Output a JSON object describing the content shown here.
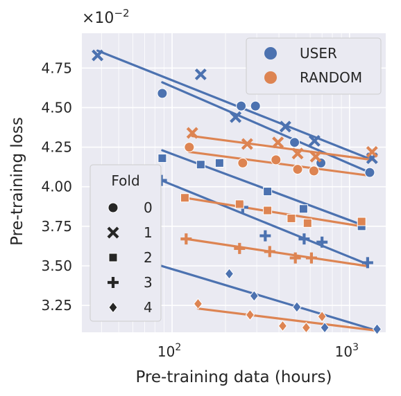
{
  "chart_data": {
    "type": "scatter",
    "title": "",
    "xlabel": "Pre-training data (hours)",
    "ylabel": "Pre-training loss",
    "x_scale": "log",
    "xlim": [
      31,
      1600
    ],
    "ylim": [
      3.08,
      4.97
    ],
    "y_multiplier_label": "×10",
    "y_multiplier_exp": "−2",
    "x_ticks": [
      {
        "value": 100,
        "base": "10",
        "exp": "2"
      },
      {
        "value": 1000,
        "base": "10",
        "exp": "3"
      }
    ],
    "y_ticks": [
      {
        "value": 3.25,
        "label": "3.25"
      },
      {
        "value": 3.5,
        "label": "3.50"
      },
      {
        "value": 3.75,
        "label": "3.75"
      },
      {
        "value": 4.0,
        "label": "4.00"
      },
      {
        "value": 4.25,
        "label": "4.25"
      },
      {
        "value": 4.5,
        "label": "4.50"
      },
      {
        "value": 4.75,
        "label": "4.75"
      }
    ],
    "grid": true,
    "colors": {
      "USER": "#4c72b0",
      "RANDOM": "#dd8452",
      "background": "#eaeaf2",
      "grid": "#ffffff",
      "neutral": "#262626"
    },
    "hue_legend": {
      "position": "top-right",
      "entries": [
        "USER",
        "RANDOM"
      ]
    },
    "style_legend": {
      "position": "lower-left",
      "title": "Fold",
      "entries": [
        {
          "label": "0",
          "marker": "circle"
        },
        {
          "label": "1",
          "marker": "x"
        },
        {
          "label": "2",
          "marker": "square"
        },
        {
          "label": "3",
          "marker": "plus"
        },
        {
          "label": "4",
          "marker": "diamond"
        }
      ]
    },
    "series": [
      {
        "name": "USER",
        "fold": "0",
        "marker": "circle",
        "points": [
          [
            88,
            4.59
          ],
          [
            245,
            4.51
          ],
          [
            295,
            4.51
          ],
          [
            490,
            4.28
          ],
          [
            690,
            4.15
          ],
          [
            1300,
            4.09
          ]
        ],
        "fit": [
          [
            88,
            4.66
          ],
          [
            1300,
            4.09
          ]
        ]
      },
      {
        "name": "USER",
        "fold": "1",
        "marker": "x",
        "points": [
          [
            38,
            4.83
          ],
          [
            145,
            4.71
          ],
          [
            228,
            4.44
          ],
          [
            435,
            4.38
          ],
          [
            635,
            4.29
          ],
          [
            1340,
            4.18
          ]
        ],
        "fit": [
          [
            38,
            4.86
          ],
          [
            1340,
            4.17
          ]
        ]
      },
      {
        "name": "USER",
        "fold": "2",
        "marker": "square",
        "points": [
          [
            88,
            4.18
          ],
          [
            145,
            4.14
          ],
          [
            185,
            4.15
          ],
          [
            345,
            3.97
          ],
          [
            550,
            3.86
          ],
          [
            1170,
            3.75
          ]
        ],
        "fit": [
          [
            88,
            4.23
          ],
          [
            1170,
            3.76
          ]
        ]
      },
      {
        "name": "USER",
        "fold": "3",
        "marker": "plus",
        "points": [
          [
            87,
            4.04
          ],
          [
            250,
            3.87
          ],
          [
            335,
            3.69
          ],
          [
            555,
            3.67
          ],
          [
            700,
            3.65
          ],
          [
            1265,
            3.52
          ]
        ],
        "fit": [
          [
            87,
            4.04
          ],
          [
            1265,
            3.51
          ]
        ]
      },
      {
        "name": "USER",
        "fold": "4",
        "marker": "diamond",
        "points": [
          [
            210,
            3.45
          ],
          [
            290,
            3.31
          ],
          [
            505,
            3.24
          ],
          [
            725,
            3.11
          ],
          [
            1430,
            3.1
          ]
        ],
        "fit": [
          [
            41,
            3.61
          ],
          [
            1430,
            3.09
          ]
        ]
      },
      {
        "name": "RANDOM",
        "fold": "0",
        "marker": "circle",
        "points": [
          [
            125,
            4.25
          ],
          [
            250,
            4.15
          ],
          [
            385,
            4.17
          ],
          [
            510,
            4.11
          ],
          [
            630,
            4.1
          ]
        ],
        "fit": [
          [
            125,
            4.22
          ],
          [
            1300,
            4.07
          ]
        ]
      },
      {
        "name": "RANDOM",
        "fold": "1",
        "marker": "x",
        "points": [
          [
            130,
            4.34
          ],
          [
            265,
            4.27
          ],
          [
            395,
            4.28
          ],
          [
            510,
            4.21
          ],
          [
            645,
            4.19
          ],
          [
            1340,
            4.22
          ]
        ],
        "fit": [
          [
            130,
            4.32
          ],
          [
            1340,
            4.17
          ]
        ]
      },
      {
        "name": "RANDOM",
        "fold": "2",
        "marker": "square",
        "points": [
          [
            118,
            3.93
          ],
          [
            240,
            3.89
          ],
          [
            345,
            3.85
          ],
          [
            470,
            3.8
          ],
          [
            580,
            3.77
          ],
          [
            1170,
            3.78
          ]
        ],
        "fit": [
          [
            118,
            3.93
          ],
          [
            1170,
            3.75
          ]
        ]
      },
      {
        "name": "RANDOM",
        "fold": "3",
        "marker": "plus",
        "points": [
          [
            120,
            3.67
          ],
          [
            240,
            3.61
          ],
          [
            355,
            3.59
          ],
          [
            495,
            3.55
          ],
          [
            610,
            3.55
          ]
        ],
        "fit": [
          [
            120,
            3.67
          ],
          [
            1230,
            3.5
          ]
        ]
      },
      {
        "name": "RANDOM",
        "fold": "4",
        "marker": "diamond",
        "points": [
          [
            140,
            3.26
          ],
          [
            275,
            3.19
          ],
          [
            420,
            3.12
          ],
          [
            570,
            3.11
          ],
          [
            700,
            3.18
          ]
        ],
        "fit": [
          [
            140,
            3.23
          ],
          [
            1440,
            3.09
          ]
        ]
      }
    ]
  }
}
